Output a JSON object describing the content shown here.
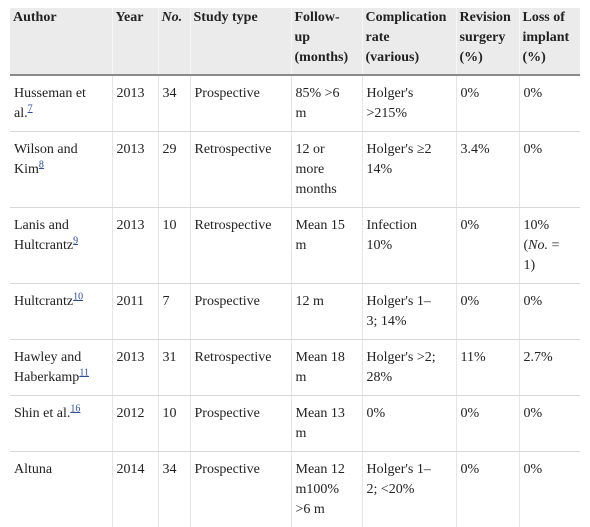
{
  "table": {
    "headers": [
      {
        "key": "author",
        "lines": [
          "Author"
        ]
      },
      {
        "key": "year",
        "lines": [
          "Year"
        ]
      },
      {
        "key": "no",
        "lines": [
          "No."
        ]
      },
      {
        "key": "study_type",
        "lines": [
          "Study type"
        ]
      },
      {
        "key": "follow_up",
        "lines": [
          "Follow-",
          "up",
          "(months)"
        ]
      },
      {
        "key": "complication",
        "lines": [
          "Complication",
          "rate",
          "(various)"
        ]
      },
      {
        "key": "revision",
        "lines": [
          "Revision",
          "surgery",
          "(%)"
        ]
      },
      {
        "key": "loss",
        "lines": [
          "Loss of",
          "implant",
          "(%)"
        ]
      }
    ],
    "rows": [
      {
        "author": [
          "Husseman et",
          "al."
        ],
        "ref": "7",
        "year": "2013",
        "no": "34",
        "study_type": "Prospective",
        "follow_up": [
          "85% >6",
          "m"
        ],
        "complication": [
          "Holger's",
          ">215%"
        ],
        "revision": [
          "0%"
        ],
        "loss": [
          "0%"
        ]
      },
      {
        "author": [
          "Wilson and",
          "Kim"
        ],
        "ref": "8",
        "year": "2013",
        "no": "29",
        "study_type": "Retrospective",
        "follow_up": [
          "12 or",
          "more",
          "months"
        ],
        "complication": [
          "Holger's ≥2",
          "14%"
        ],
        "revision": [
          "3.4%"
        ],
        "loss": [
          "0%"
        ]
      },
      {
        "author": [
          "Lanis and",
          "Hultcrantz"
        ],
        "ref": "9",
        "year": "2013",
        "no": "10",
        "study_type": "Retrospective",
        "follow_up": [
          "Mean 15",
          "m"
        ],
        "complication": [
          "Infection",
          "10%"
        ],
        "revision": [
          "0%"
        ],
        "loss": [
          "10%",
          "(No. =",
          "1)"
        ]
      },
      {
        "author": [
          "Hultcrantz"
        ],
        "ref": "10",
        "year": "2011",
        "no": "7",
        "study_type": "Prospective",
        "follow_up": [
          "12 m"
        ],
        "complication": [
          "Holger's 1–",
          "3; 14%"
        ],
        "revision": [
          "0%"
        ],
        "loss": [
          "0%"
        ]
      },
      {
        "author": [
          "Hawley and",
          "Haberkamp"
        ],
        "ref": "11",
        "year": "2013",
        "no": "31",
        "study_type": "Retrospective",
        "follow_up": [
          "Mean 18",
          "m"
        ],
        "complication": [
          "Holger's >2;",
          "28%"
        ],
        "revision": [
          "11%"
        ],
        "loss": [
          "2.7%"
        ]
      },
      {
        "author": [
          "Shin et al."
        ],
        "ref": "16",
        "year": "2012",
        "no": "10",
        "study_type": "Prospective",
        "follow_up": [
          "Mean 13",
          "m"
        ],
        "complication": [
          "0%"
        ],
        "revision": [
          "0%"
        ],
        "loss": [
          "0%"
        ]
      },
      {
        "author": [
          "Altuna"
        ],
        "ref": "",
        "year": "2014",
        "no": "34",
        "study_type": "Prospective",
        "follow_up": [
          "Mean 12",
          "m100%",
          ">6 m"
        ],
        "complication": [
          "Holger's 1–",
          "2; <20%"
        ],
        "revision": [
          "0%"
        ],
        "loss": [
          "0%"
        ]
      }
    ]
  }
}
